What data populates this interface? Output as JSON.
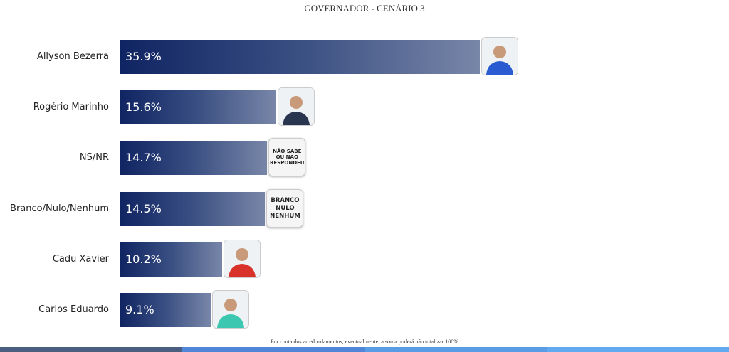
{
  "chart_data": {
    "type": "bar",
    "orientation": "horizontal",
    "title": "GOVERNADOR - CENÁRIO 3",
    "categories": [
      "Allyson Bezerra",
      "Rogério Marinho",
      "NS/NR",
      "Branco/Nulo/Nenhum",
      "Cadu Xavier",
      "Carlos Eduardo"
    ],
    "values": [
      35.9,
      15.6,
      14.7,
      14.5,
      10.2,
      9.1
    ],
    "value_labels": [
      "35.9%",
      "15.6%",
      "14.7%",
      "14.5%",
      "10.2%",
      "9.1%"
    ],
    "badges": [
      "photo",
      "photo",
      "NÃO SABE OU NÃO RESPONDEU",
      "BRANCO NULO NENHUM",
      "photo",
      "photo"
    ],
    "grid": false,
    "bar_color_start": "#0f2462",
    "bar_color_end": "#7886a8"
  },
  "footnote": "Por conta dos arredondamentos, eventualmente, a soma poderá não totalizar 100%",
  "strip_colors": [
    "#4a5f80",
    "#4f86d8",
    "#5a9be6",
    "#62aaf0"
  ]
}
